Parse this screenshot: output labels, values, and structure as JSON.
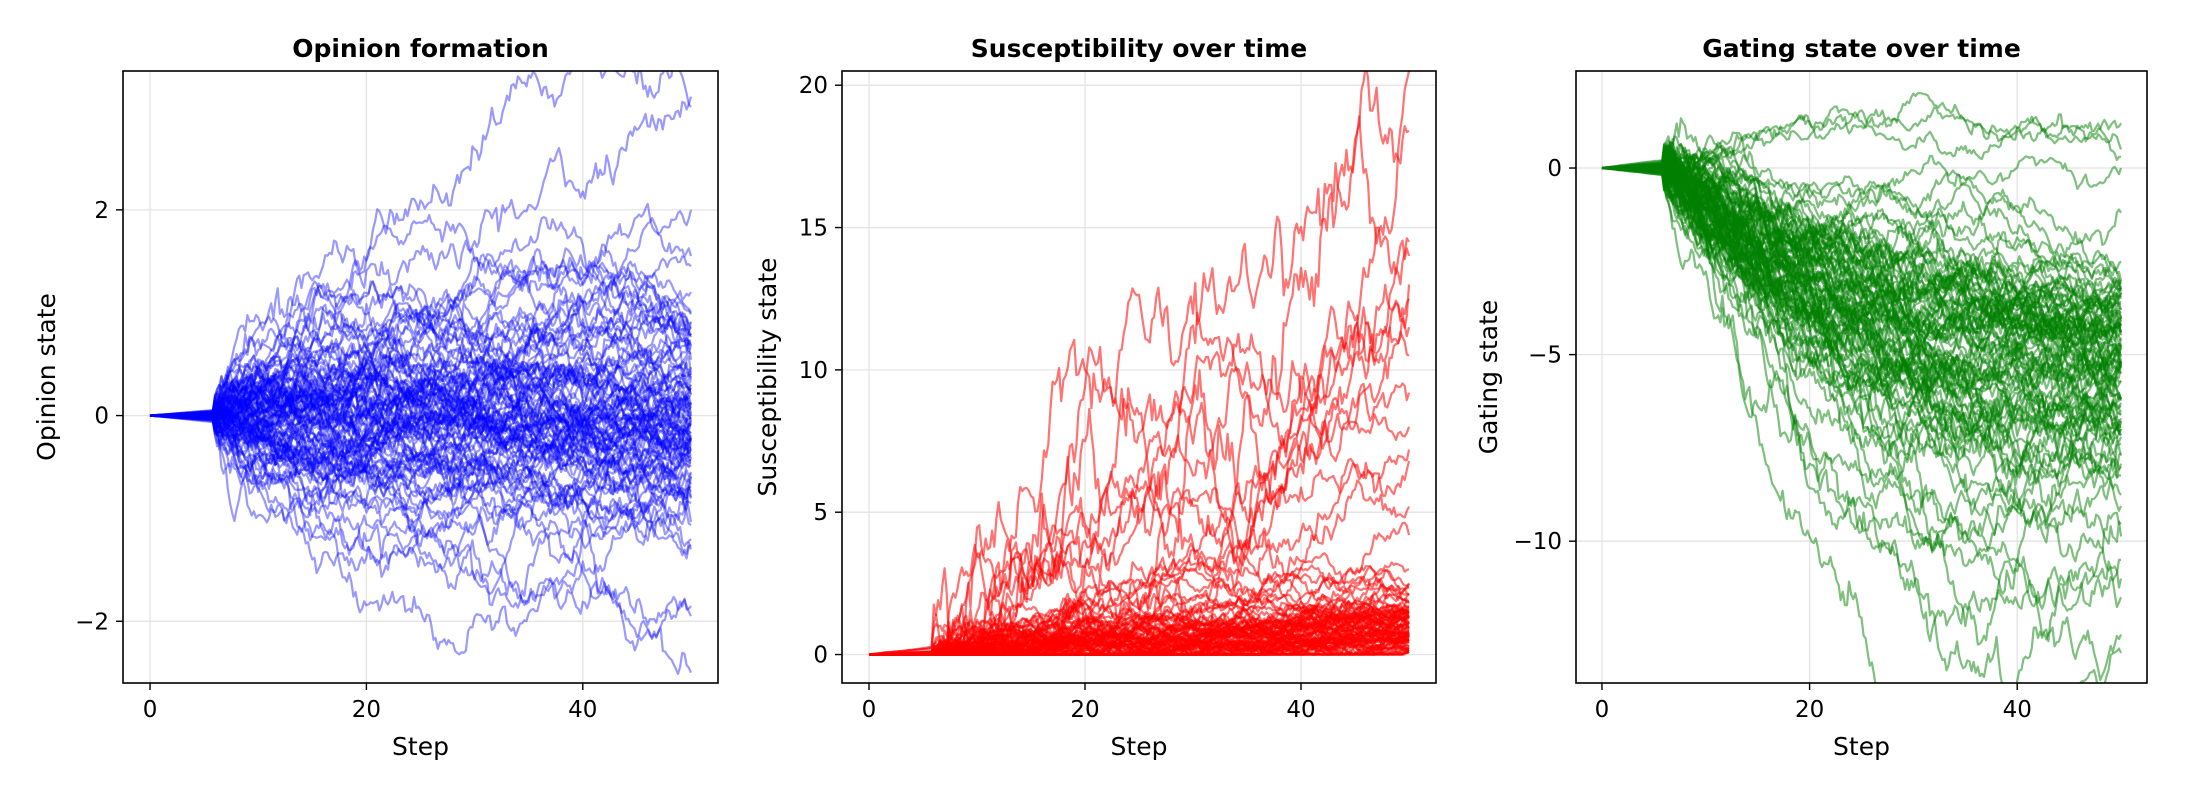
{
  "chart_data": [
    {
      "type": "line",
      "title": "Opinion formation",
      "xlabel": "Step",
      "ylabel": "Opinion state",
      "xlim": [
        -2.5,
        52.5
      ],
      "ylim": [
        -2.6,
        3.35
      ],
      "xticks": [
        0,
        20,
        40
      ],
      "yticks": [
        -2,
        0,
        2
      ],
      "grid": true,
      "color": "#0000ff",
      "alpha": 0.4,
      "n_series": 100,
      "steps": [
        0,
        50
      ],
      "pattern": "all series near 0 until about step 6, then spread out; most end between about -1.3 and 1.2, a few outliers reaching about 3.1 at the top and -2.5 at the bottom",
      "end_values": [
        3.1,
        3.0,
        2.0,
        1.55,
        1.45,
        1.2,
        1.0,
        0.9,
        0.85,
        -1.2,
        -1.85,
        -1.95,
        -2.5
      ]
    },
    {
      "type": "line",
      "title": "Susceptibility over time",
      "xlabel": "Step",
      "ylabel": "Susceptibility state",
      "xlim": [
        -2.5,
        52.5
      ],
      "ylim": [
        -1.0,
        20.5
      ],
      "xticks": [
        0,
        20,
        40
      ],
      "yticks": [
        0,
        5,
        10,
        15,
        20
      ],
      "grid": true,
      "color": "#ff0000",
      "alpha": 0.55,
      "n_series": 100,
      "steps": [
        0,
        50
      ],
      "pattern": "all series at 0 until about step 6, then grow; most end between 0 and 3, a few reaching about 20.5",
      "end_values": [
        20.5,
        18.4,
        14.5,
        14.0,
        13.0,
        12.5,
        11.5,
        10.5,
        9.2,
        8.0,
        7.2,
        6.8,
        5.2,
        4.2
      ]
    },
    {
      "type": "line",
      "title": "Gating state over time",
      "xlabel": "Step",
      "ylabel": "Gating state",
      "xlim": [
        -2.5,
        52.5
      ],
      "ylim": [
        -13.8,
        2.6
      ],
      "xticks": [
        0,
        20,
        40
      ],
      "yticks": [
        -10,
        -5,
        0
      ],
      "grid": true,
      "color": "#008000",
      "alpha": 0.5,
      "n_series": 100,
      "steps": [
        0,
        50
      ],
      "pattern": "all series near 0 until about step 6, then mostly decline; most end between about -2 and -11, a few staying near 0 to 1, the lowest reaching about -13",
      "end_values": [
        1.2,
        0.5,
        0.3,
        0.0,
        -1.2,
        -2.5,
        -3.5,
        -4.8,
        -5.5,
        -6.2,
        -7.0,
        -8.0,
        -9.5,
        -10.5,
        -11.5,
        -12.5,
        -13.0
      ]
    }
  ]
}
